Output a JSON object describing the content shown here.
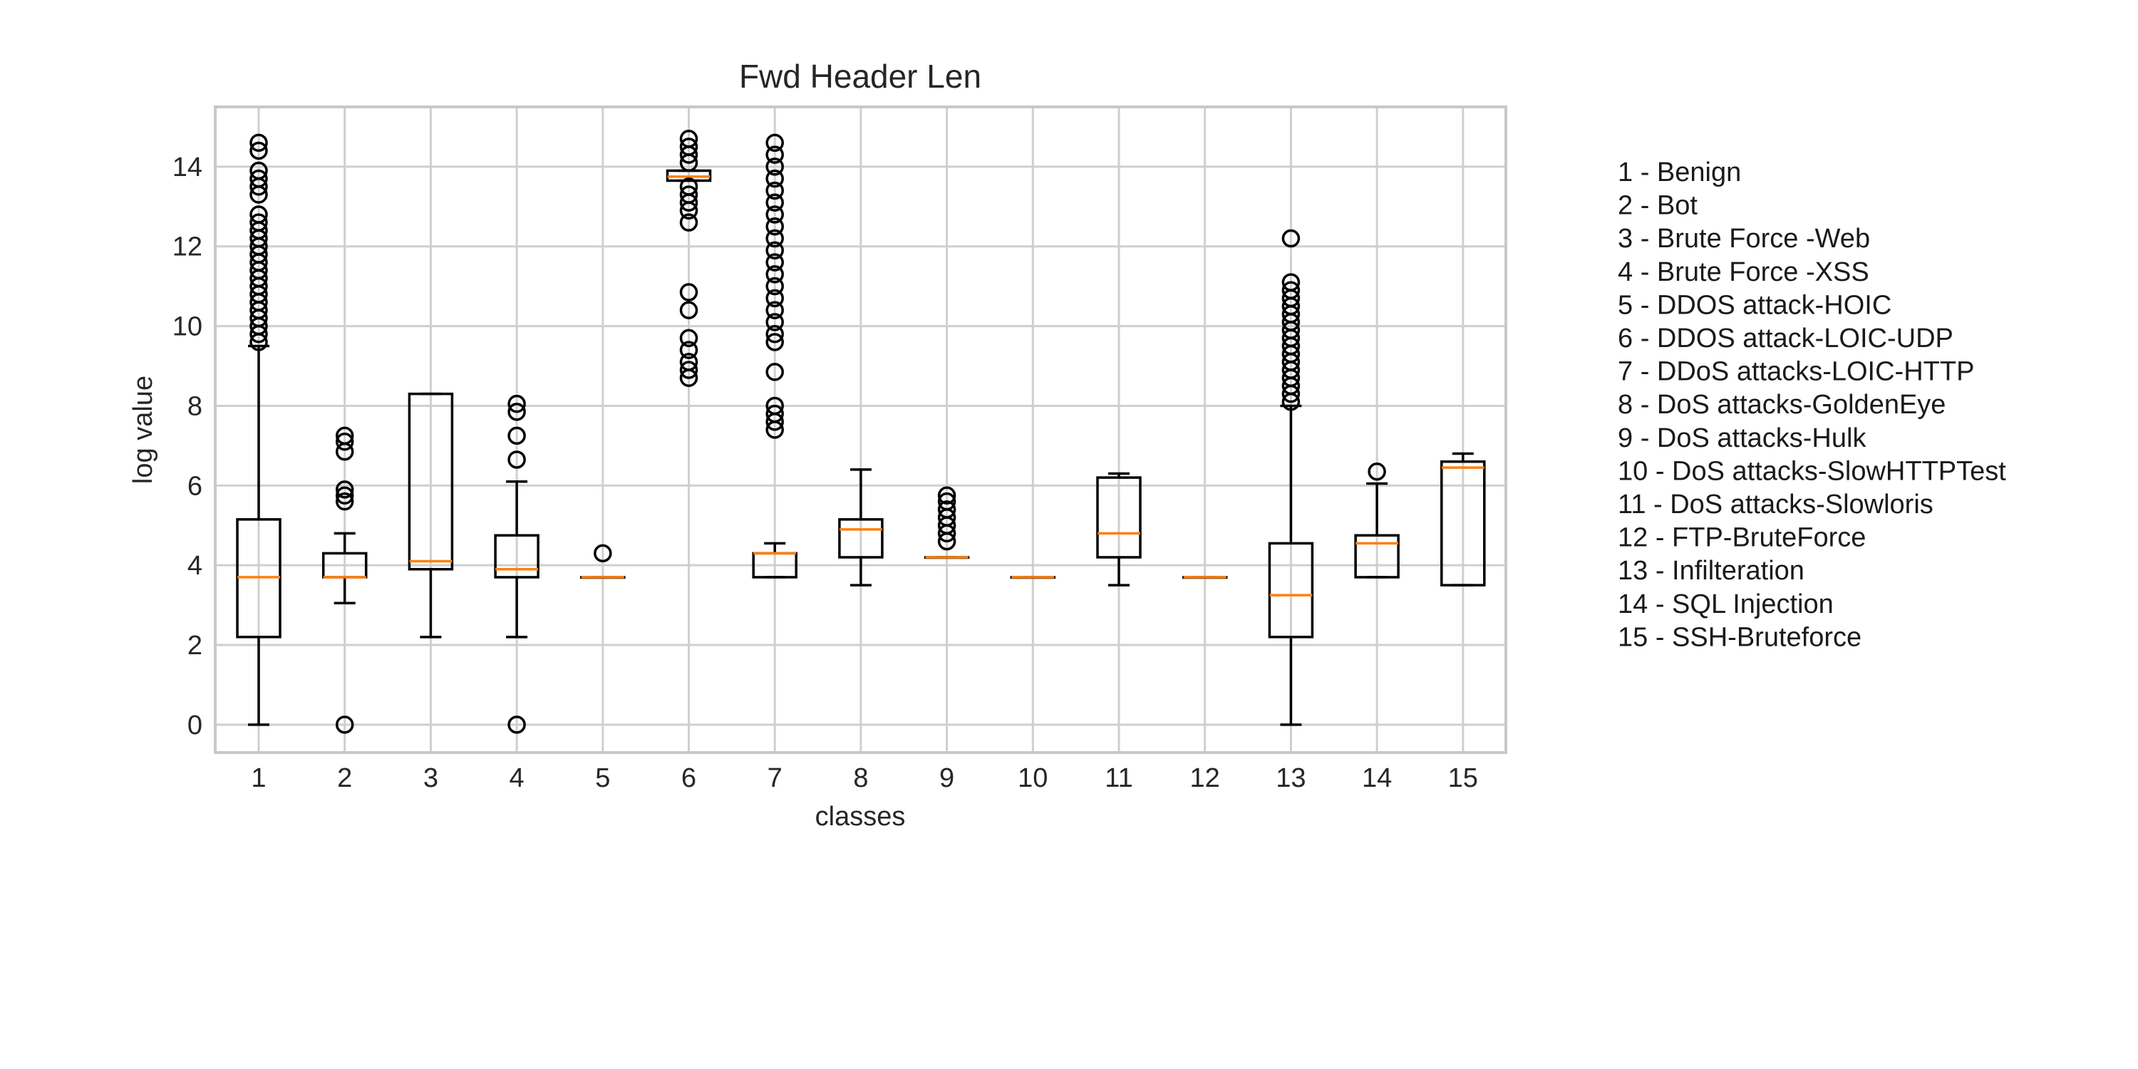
{
  "chart_data": {
    "type": "box",
    "title": "Fwd Header Len",
    "xlabel": "classes",
    "ylabel": "log value",
    "ylim": [
      -0.7,
      15.5
    ],
    "yticks": [
      0,
      2,
      4,
      6,
      8,
      10,
      12,
      14
    ],
    "grid": true,
    "categories": [
      "1",
      "2",
      "3",
      "4",
      "5",
      "6",
      "7",
      "8",
      "9",
      "10",
      "11",
      "12",
      "13",
      "14",
      "15"
    ],
    "legend": [
      "1 - Benign",
      "2 - Bot",
      "3 - Brute Force -Web",
      "4 - Brute Force -XSS",
      "5 - DDOS attack-HOIC",
      "6 - DDOS attack-LOIC-UDP",
      "7 - DDoS attacks-LOIC-HTTP",
      "8 - DoS attacks-GoldenEye",
      "9 - DoS attacks-Hulk",
      "10 - DoS attacks-SlowHTTPTest",
      "11 - DoS attacks-Slowloris",
      "12 - FTP-BruteForce",
      "13 - Infilteration",
      "14 - SQL Injection",
      "15 - SSH-Bruteforce"
    ],
    "boxes": [
      {
        "class": "1",
        "whislo": 0.0,
        "q1": 2.2,
        "med": 3.7,
        "q3": 5.15,
        "whishi": 9.5,
        "fliers": [
          9.6,
          9.8,
          10.0,
          10.2,
          10.4,
          10.6,
          10.8,
          11.0,
          11.2,
          11.4,
          11.6,
          11.8,
          12.0,
          12.2,
          12.4,
          12.6,
          12.8,
          13.3,
          13.5,
          13.7,
          13.9,
          14.4,
          14.6
        ]
      },
      {
        "class": "2",
        "whislo": 3.05,
        "q1": 3.7,
        "med": 3.7,
        "q3": 4.3,
        "whishi": 4.8,
        "fliers": [
          0.0,
          5.6,
          5.75,
          5.9,
          6.85,
          7.1,
          7.25
        ]
      },
      {
        "class": "3",
        "whislo": 2.2,
        "q1": 3.9,
        "med": 4.1,
        "q3": 8.3,
        "whishi": 8.3,
        "fliers": []
      },
      {
        "class": "4",
        "whislo": 2.2,
        "q1": 3.7,
        "med": 3.9,
        "q3": 4.75,
        "whishi": 6.1,
        "fliers": [
          0.0,
          6.65,
          7.25,
          7.85,
          8.05
        ]
      },
      {
        "class": "5",
        "whislo": 3.7,
        "q1": 3.7,
        "med": 3.7,
        "q3": 3.7,
        "whishi": 3.7,
        "fliers": [
          4.3
        ]
      },
      {
        "class": "6",
        "whislo": 13.65,
        "q1": 13.65,
        "med": 13.75,
        "q3": 13.9,
        "whishi": 13.9,
        "fliers": [
          8.7,
          8.9,
          9.1,
          9.4,
          9.7,
          10.4,
          10.85,
          12.6,
          12.9,
          13.1,
          13.3,
          13.5,
          14.1,
          14.3,
          14.5,
          14.7
        ]
      },
      {
        "class": "7",
        "whislo": 3.7,
        "q1": 3.7,
        "med": 4.3,
        "q3": 4.3,
        "whishi": 4.55,
        "fliers": [
          7.4,
          7.6,
          7.8,
          8.0,
          8.85,
          9.6,
          9.8,
          10.1,
          10.4,
          10.7,
          11.0,
          11.3,
          11.6,
          11.9,
          12.2,
          12.5,
          12.8,
          13.1,
          13.4,
          13.7,
          14.0,
          14.3,
          14.6
        ]
      },
      {
        "class": "8",
        "whislo": 3.5,
        "q1": 4.2,
        "med": 4.9,
        "q3": 5.15,
        "whishi": 6.4,
        "fliers": []
      },
      {
        "class": "9",
        "whislo": 4.2,
        "q1": 4.2,
        "med": 4.2,
        "q3": 4.2,
        "whishi": 4.2,
        "fliers": [
          4.6,
          4.8,
          5.0,
          5.2,
          5.4,
          5.6,
          5.75
        ]
      },
      {
        "class": "10",
        "whislo": 3.7,
        "q1": 3.7,
        "med": 3.7,
        "q3": 3.7,
        "whishi": 3.7,
        "fliers": []
      },
      {
        "class": "11",
        "whislo": 3.5,
        "q1": 4.2,
        "med": 4.8,
        "q3": 6.2,
        "whishi": 6.3,
        "fliers": []
      },
      {
        "class": "12",
        "whislo": 3.7,
        "q1": 3.7,
        "med": 3.7,
        "q3": 3.7,
        "whishi": 3.7,
        "fliers": []
      },
      {
        "class": "13",
        "whislo": 0.0,
        "q1": 2.2,
        "med": 3.25,
        "q3": 4.55,
        "whishi": 8.0,
        "fliers": [
          8.1,
          8.3,
          8.5,
          8.7,
          8.9,
          9.1,
          9.3,
          9.5,
          9.7,
          9.9,
          10.1,
          10.3,
          10.5,
          10.7,
          10.9,
          11.1,
          12.2
        ]
      },
      {
        "class": "14",
        "whislo": 3.7,
        "q1": 3.7,
        "med": 4.55,
        "q3": 4.75,
        "whishi": 6.05,
        "fliers": [
          6.35
        ]
      },
      {
        "class": "15",
        "whislo": 3.5,
        "q1": 3.5,
        "med": 6.45,
        "q3": 6.6,
        "whishi": 6.8,
        "fliers": []
      }
    ]
  }
}
